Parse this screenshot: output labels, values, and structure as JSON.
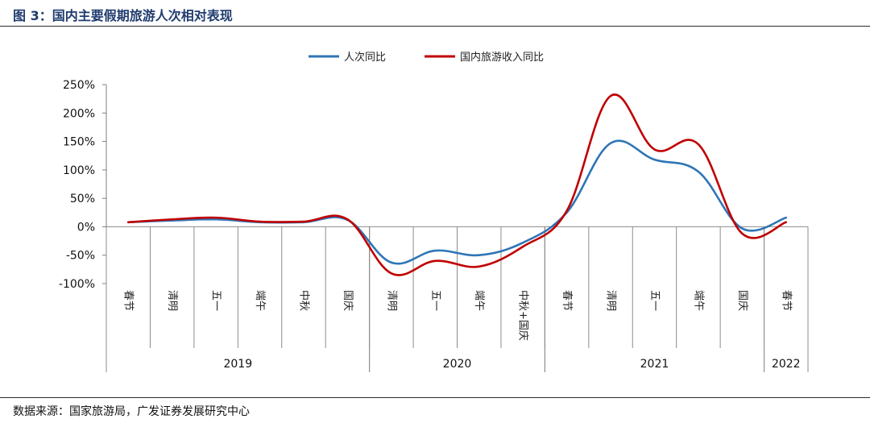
{
  "figure": {
    "title": "图 3：国内主要假期旅游人次相对表现",
    "source": "数据来源：国家旅游局，广发证券发展研究中心"
  },
  "chart_data": {
    "type": "line",
    "categories": [
      "春节",
      "清明",
      "五一",
      "端午",
      "中秋",
      "国庆",
      "清明",
      "五一",
      "端午",
      "中秋+国庆",
      "春节",
      "清明",
      "五一",
      "端午",
      "国庆",
      "春节"
    ],
    "category_groups": [
      {
        "label": "2019",
        "span": 6
      },
      {
        "label": "2020",
        "span": 4
      },
      {
        "label": "2021",
        "span": 5
      },
      {
        "label": "2022",
        "span": 1
      }
    ],
    "series": [
      {
        "name": "人次同比",
        "color": "#2e75b6",
        "values": [
          8,
          11,
          13,
          8,
          8,
          12,
          -63,
          -42,
          -50,
          -28,
          25,
          147,
          118,
          97,
          -3,
          16
        ]
      },
      {
        "name": "国内旅游收入同比",
        "color": "#c00000",
        "values": [
          8,
          13,
          16,
          9,
          9,
          13,
          -82,
          -60,
          -70,
          -35,
          28,
          230,
          136,
          145,
          -12,
          8
        ]
      }
    ],
    "yticks": [
      "250%",
      "200%",
      "150%",
      "100%",
      "50%",
      "0%",
      "-50%",
      "-100%"
    ],
    "ylim": [
      -100,
      250
    ],
    "legend_position": "top-center",
    "grid": false
  }
}
